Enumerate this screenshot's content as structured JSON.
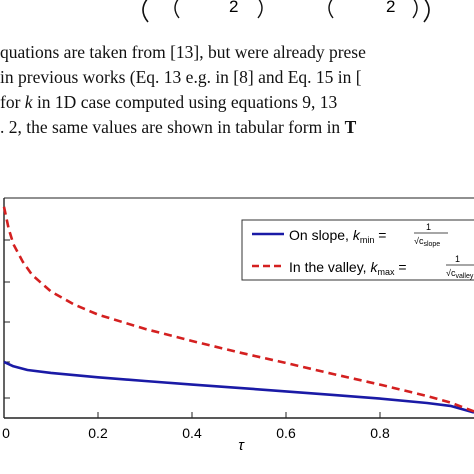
{
  "paragraph": {
    "lines": [
      "quations are taken from [13], but were already prese",
      "in previous works (Eq. 13 e.g. in [8] and Eq. 15 in [",
      " for ",
      " in 1D case computed using equations 9, 13",
      ". 2, the same values are shown in tabular form in "
    ],
    "k_symbol": "k",
    "table_ref": "T"
  },
  "chart_data": {
    "type": "line",
    "xlabel": "τ",
    "ylabel": "",
    "title": "",
    "xlim": [
      0,
      1
    ],
    "x_ticks": [
      "0",
      "0.2",
      "0.4",
      "0.6",
      "0.8"
    ],
    "x_tick_values": [
      0,
      0.2,
      0.4,
      0.6,
      0.8
    ],
    "legend_position": "top-right",
    "series": [
      {
        "name": "On slope, k_min = 1/√c_slope",
        "color": "#1a1aa6",
        "style": "solid",
        "x": [
          0,
          0.02,
          0.05,
          0.1,
          0.2,
          0.3,
          0.4,
          0.5,
          0.6,
          0.7,
          0.8,
          0.9,
          0.95,
          1.0
        ],
        "y": [
          0.255,
          0.235,
          0.218,
          0.205,
          0.185,
          0.168,
          0.152,
          0.137,
          0.121,
          0.105,
          0.088,
          0.068,
          0.055,
          0.025
        ]
      },
      {
        "name": "In the valley, k_max = 1/√c_valley",
        "color": "#d42020",
        "style": "dashed",
        "x": [
          0,
          0.01,
          0.02,
          0.04,
          0.06,
          0.1,
          0.15,
          0.2,
          0.3,
          0.4,
          0.5,
          0.6,
          0.7,
          0.8,
          0.9,
          0.95,
          1.0
        ],
        "y": [
          0.96,
          0.86,
          0.79,
          0.71,
          0.65,
          0.575,
          0.515,
          0.47,
          0.405,
          0.35,
          0.298,
          0.25,
          0.2,
          0.152,
          0.1,
          0.07,
          0.03
        ]
      }
    ],
    "legend": {
      "slope_text": "On slope, ",
      "slope_k": "k",
      "slope_sub": "min",
      "slope_den": "√c",
      "slope_den_sub": "slope",
      "valley_text": "In the valley, ",
      "valley_k": "k",
      "valley_sub": "max",
      "valley_den": "√c",
      "valley_den_sub": "valley",
      "eq": " = ",
      "num": "1"
    }
  }
}
